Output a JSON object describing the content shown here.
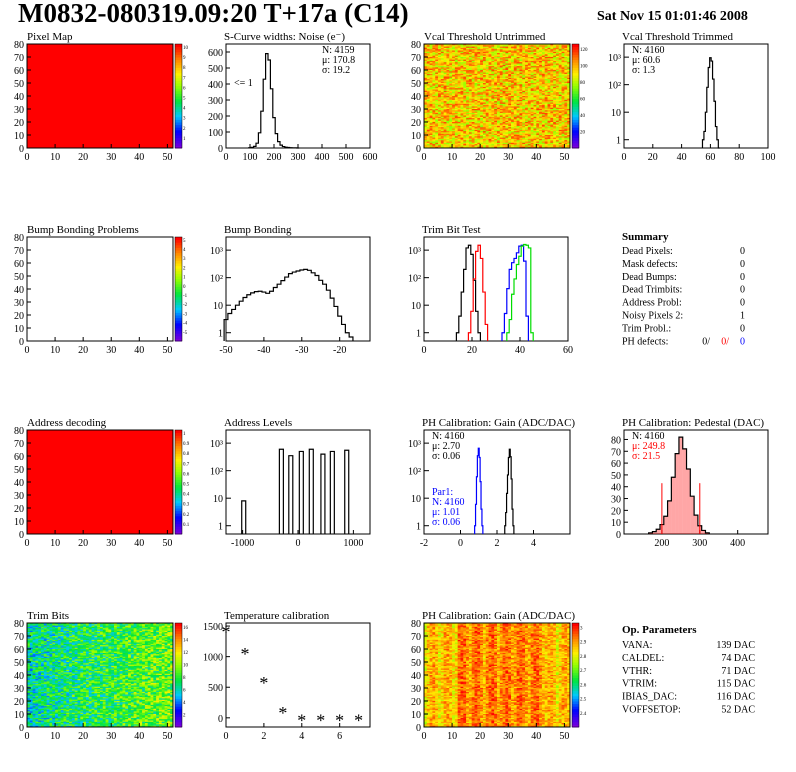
{
  "header": {
    "title": "M0832-080319.09:20 T+17a (C14)",
    "date": "Sat Nov 15 01:01:46 2008"
  },
  "colors": {
    "red": "#ff0000",
    "blue": "#0000ff",
    "green": "#00dd00",
    "black": "#000000"
  },
  "chart_data": [
    {
      "id": "pixel-map",
      "type": "heatmap",
      "title": "Pixel Map",
      "xlim": [
        0,
        52
      ],
      "ylim": [
        0,
        80
      ],
      "xticks": [
        0,
        10,
        20,
        30,
        40,
        50
      ],
      "yticks": [
        0,
        10,
        20,
        30,
        40,
        50,
        60,
        70,
        80
      ],
      "fill": "uniform-max",
      "palette": "root",
      "colorbar_ticks": [
        "1",
        "2",
        "3",
        "4",
        "5",
        "6",
        "7",
        "8",
        "9",
        "10"
      ]
    },
    {
      "id": "noise",
      "type": "line",
      "title": "S-Curve widths: Noise (e⁻)",
      "xlim": [
        0,
        600
      ],
      "xticks": [
        0,
        100,
        200,
        300,
        400,
        500,
        600
      ],
      "ylim": [
        0,
        650
      ],
      "yticks": [
        0,
        100,
        200,
        300,
        400,
        500,
        600
      ],
      "stats": [
        "N: 4159",
        "μ: 170.8",
        "σ: 19.2"
      ],
      "annotation": "<= 1",
      "x": [
        100,
        110,
        120,
        130,
        140,
        150,
        160,
        170,
        180,
        190,
        200,
        210,
        220,
        230,
        240,
        250,
        260,
        270,
        280,
        290,
        300
      ],
      "y": [
        2,
        4,
        10,
        30,
        95,
        230,
        430,
        590,
        550,
        370,
        190,
        90,
        40,
        18,
        9,
        5,
        3,
        2,
        1,
        1,
        0
      ]
    },
    {
      "id": "vcal-untrimmed",
      "type": "heatmap",
      "title": "Vcal Threshold Untrimmed",
      "xlim": [
        0,
        52
      ],
      "ylim": [
        0,
        80
      ],
      "xticks": [
        0,
        10,
        20,
        30,
        40,
        50
      ],
      "yticks": [
        0,
        10,
        20,
        30,
        40,
        50,
        60,
        70,
        80
      ],
      "fill": "noise-orange",
      "palette": "root",
      "colorbar_ticks": [
        "20",
        "40",
        "60",
        "80",
        "100",
        "120"
      ]
    },
    {
      "id": "vcal-trimmed",
      "type": "line",
      "title": "Vcal Threshold Trimmed",
      "xlim": [
        0,
        100
      ],
      "xticks": [
        0,
        20,
        40,
        60,
        80,
        100
      ],
      "log": true,
      "ylim": [
        0.5,
        3000
      ],
      "stats": [
        "N: 4160",
        "μ: 60.6",
        "σ: 1.3"
      ],
      "x": [
        55,
        56,
        57,
        58,
        59,
        60,
        61,
        62,
        63,
        64,
        65,
        66
      ],
      "y": [
        1,
        2,
        10,
        80,
        420,
        950,
        720,
        160,
        25,
        3,
        1,
        0
      ]
    },
    {
      "id": "bump-problems",
      "type": "heatmap",
      "title": "Bump Bonding Problems",
      "xlim": [
        0,
        52
      ],
      "ylim": [
        0,
        80
      ],
      "xticks": [
        0,
        10,
        20,
        30,
        40,
        50
      ],
      "yticks": [
        0,
        10,
        20,
        30,
        40,
        50,
        60,
        70,
        80
      ],
      "fill": "empty",
      "palette": "root",
      "colorbar_ticks": [
        "-5",
        "-4",
        "-3",
        "-2",
        "-1",
        "0",
        "1",
        "2",
        "3",
        "4",
        "5"
      ]
    },
    {
      "id": "bump-bonding",
      "type": "line",
      "title": "Bump Bonding",
      "xlim": [
        -50,
        -12
      ],
      "xticks": [
        -50,
        -40,
        -30,
        -20
      ],
      "log": true,
      "ylim": [
        0.5,
        3000
      ],
      "x": [
        -50,
        -49,
        -48,
        -47,
        -46,
        -45,
        -44,
        -43,
        -42,
        -41,
        -40,
        -39,
        -38,
        -37,
        -36,
        -35,
        -34,
        -33,
        -32,
        -31,
        -30,
        -29,
        -28,
        -27,
        -26,
        -25,
        -24,
        -23,
        -22,
        -21,
        -20,
        -19,
        -18,
        -17
      ],
      "y": [
        3,
        5,
        7,
        10,
        14,
        19,
        24,
        28,
        31,
        32,
        30,
        27,
        32,
        44,
        58,
        78,
        105,
        140,
        160,
        175,
        190,
        200,
        185,
        150,
        120,
        80,
        58,
        35,
        18,
        9,
        4,
        2,
        1,
        0.7
      ]
    },
    {
      "id": "trim-bit-test",
      "type": "line",
      "title": "Trim Bit Test",
      "xlim": [
        0,
        60
      ],
      "xticks": [
        0,
        20,
        40,
        60
      ],
      "log": true,
      "ylim": [
        0.5,
        3000
      ],
      "series": [
        {
          "color": "#000000",
          "x": [
            14,
            15,
            16,
            17,
            18,
            19,
            20,
            21,
            22,
            23
          ],
          "y": [
            1,
            4,
            30,
            200,
            1200,
            1500,
            700,
            80,
            6,
            1
          ]
        },
        {
          "color": "#ff0000",
          "x": [
            19,
            20,
            21,
            22,
            23,
            24,
            25,
            26
          ],
          "y": [
            1,
            6,
            90,
            900,
            1500,
            500,
            30,
            2
          ]
        },
        {
          "color": "#0000ff",
          "x": [
            33,
            34,
            35,
            36,
            37,
            38,
            39,
            40,
            41,
            42,
            43
          ],
          "y": [
            1,
            5,
            40,
            200,
            350,
            500,
            800,
            1400,
            1500,
            400,
            4
          ]
        },
        {
          "color": "#00dd00",
          "x": [
            35,
            36,
            37,
            38,
            39,
            40,
            41,
            42,
            43,
            44,
            45
          ],
          "y": [
            1,
            3,
            25,
            90,
            300,
            600,
            1400,
            1600,
            1500,
            1200,
            1
          ]
        }
      ]
    },
    {
      "id": "summary",
      "type": "table",
      "title": "Summary",
      "rows": [
        {
          "label": "Dead Pixels:",
          "value": "0"
        },
        {
          "label": "Mask defects:",
          "value": "0"
        },
        {
          "label": "Dead Bumps:",
          "value": "0"
        },
        {
          "label": "Dead Trimbits:",
          "value": "0"
        },
        {
          "label": "Address Probl:",
          "value": "0"
        },
        {
          "label": "Noisy Pixels 2:",
          "value": "1"
        },
        {
          "label": "Trim Probl.:",
          "value": "0"
        }
      ],
      "ph_defects": {
        "label": "PH defects:",
        "values": [
          "0/",
          "0/",
          "0"
        ]
      }
    },
    {
      "id": "address-decoding",
      "type": "heatmap",
      "title": "Address decoding",
      "xlim": [
        0,
        52
      ],
      "ylim": [
        0,
        80
      ],
      "xticks": [
        0,
        10,
        20,
        30,
        40,
        50
      ],
      "yticks": [
        0,
        10,
        20,
        30,
        40,
        50,
        60,
        70,
        80
      ],
      "fill": "uniform-max",
      "palette": "root",
      "colorbar_ticks": [
        "0.1",
        "0.2",
        "0.3",
        "0.4",
        "0.5",
        "0.6",
        "0.7",
        "0.8",
        "0.9",
        "1"
      ]
    },
    {
      "id": "address-levels",
      "type": "line",
      "title": "Address Levels",
      "xlim": [
        -1300,
        1300
      ],
      "xticks": [
        -1000,
        0,
        1000
      ],
      "log": true,
      "ylim": [
        0.5,
        3000
      ],
      "spikes": [
        {
          "x": -980,
          "y": 8
        },
        {
          "x": -300,
          "y": 600
        },
        {
          "x": -130,
          "y": 350
        },
        {
          "x": 60,
          "y": 500
        },
        {
          "x": 240,
          "y": 600
        },
        {
          "x": 450,
          "y": 400
        },
        {
          "x": 620,
          "y": 500
        },
        {
          "x": 880,
          "y": 550
        }
      ]
    },
    {
      "id": "ph-gain",
      "type": "line",
      "title": "PH Calibration: Gain (ADC/DAC)",
      "xlim": [
        -2,
        6
      ],
      "xticks": [
        -2,
        0,
        2,
        4
      ],
      "log": true,
      "ylim": [
        0.5,
        3000
      ],
      "stats": [
        "N: 4160",
        "μ: 2.70",
        "σ: 0.06"
      ],
      "stats2_title": "Par1:",
      "stats2": [
        "N: 4160",
        "μ: 1.01",
        "σ: 0.06"
      ],
      "series": [
        {
          "color": "#000000",
          "x": [
            2.45,
            2.5,
            2.55,
            2.6,
            2.65,
            2.7,
            2.75,
            2.8,
            2.85,
            2.9
          ],
          "y": [
            1,
            3,
            15,
            70,
            300,
            600,
            320,
            50,
            4,
            1
          ]
        },
        {
          "color": "#0000ff",
          "x": [
            0.8,
            0.85,
            0.9,
            0.95,
            1.0,
            1.05,
            1.1,
            1.15,
            1.2
          ],
          "y": [
            1,
            6,
            60,
            350,
            650,
            300,
            40,
            4,
            1
          ]
        }
      ]
    },
    {
      "id": "ph-pedestal",
      "type": "line",
      "title": "PH Calibration: Pedestal (DAC)",
      "xlim": [
        100,
        480
      ],
      "xticks": [
        200,
        300,
        400
      ],
      "ylim": [
        0,
        88
      ],
      "yticks": [
        0,
        10,
        20,
        30,
        40,
        50,
        60,
        70,
        80
      ],
      "stats": [
        "N: 4160",
        "μ: 249.8",
        "σ: 21.5"
      ],
      "x": [
        170,
        180,
        190,
        200,
        210,
        220,
        230,
        240,
        250,
        260,
        270,
        280,
        290,
        300,
        310,
        320
      ],
      "y": [
        1,
        2,
        4,
        8,
        15,
        28,
        48,
        68,
        82,
        72,
        55,
        32,
        16,
        7,
        3,
        1
      ],
      "markers": [
        {
          "x": 200,
          "y": 43
        },
        {
          "x": 300,
          "y": 43
        }
      ]
    },
    {
      "id": "trim-bits",
      "type": "heatmap",
      "title": "Trim Bits",
      "xlim": [
        0,
        52
      ],
      "ylim": [
        0,
        80
      ],
      "xticks": [
        0,
        10,
        20,
        30,
        40,
        50
      ],
      "yticks": [
        0,
        10,
        20,
        30,
        40,
        50,
        60,
        70,
        80
      ],
      "fill": "noise-green",
      "palette": "root",
      "colorbar_ticks": [
        "2",
        "4",
        "6",
        "8",
        "10",
        "12",
        "14",
        "16"
      ]
    },
    {
      "id": "temperature",
      "type": "scatter",
      "title": "Temperature calibration",
      "xlim": [
        0,
        7.6
      ],
      "xticks": [
        0,
        2,
        4,
        6
      ],
      "ylim": [
        -150,
        1550
      ],
      "yticks": [
        0,
        500,
        1000,
        1500
      ],
      "x": [
        0,
        1,
        2,
        3,
        4,
        5,
        6,
        7
      ],
      "y": [
        1400,
        1040,
        570,
        80,
        -40,
        -40,
        -40,
        -40
      ]
    },
    {
      "id": "ph-gain-map",
      "type": "heatmap",
      "title": "PH Calibration: Gain (ADC/DAC)",
      "xlim": [
        0,
        52
      ],
      "ylim": [
        0,
        80
      ],
      "xticks": [
        0,
        10,
        20,
        30,
        40,
        50
      ],
      "yticks": [
        0,
        10,
        20,
        30,
        40,
        50,
        60,
        70,
        80
      ],
      "fill": "noise-stripes",
      "palette": "root",
      "colorbar_ticks": [
        "2.4",
        "2.5",
        "2.6",
        "2.7",
        "2.8",
        "2.9",
        "3"
      ]
    },
    {
      "id": "op-params",
      "type": "table",
      "title": "Op. Parameters",
      "rows": [
        {
          "label": "VANA:",
          "value": "139 DAC"
        },
        {
          "label": "CALDEL:",
          "value": "74 DAC"
        },
        {
          "label": "VTHR:",
          "value": "71 DAC"
        },
        {
          "label": "VTRIM:",
          "value": "115 DAC"
        },
        {
          "label": "IBIAS_DAC:",
          "value": "116 DAC"
        },
        {
          "label": "VOFFSETOP:",
          "value": "52 DAC"
        }
      ]
    }
  ]
}
